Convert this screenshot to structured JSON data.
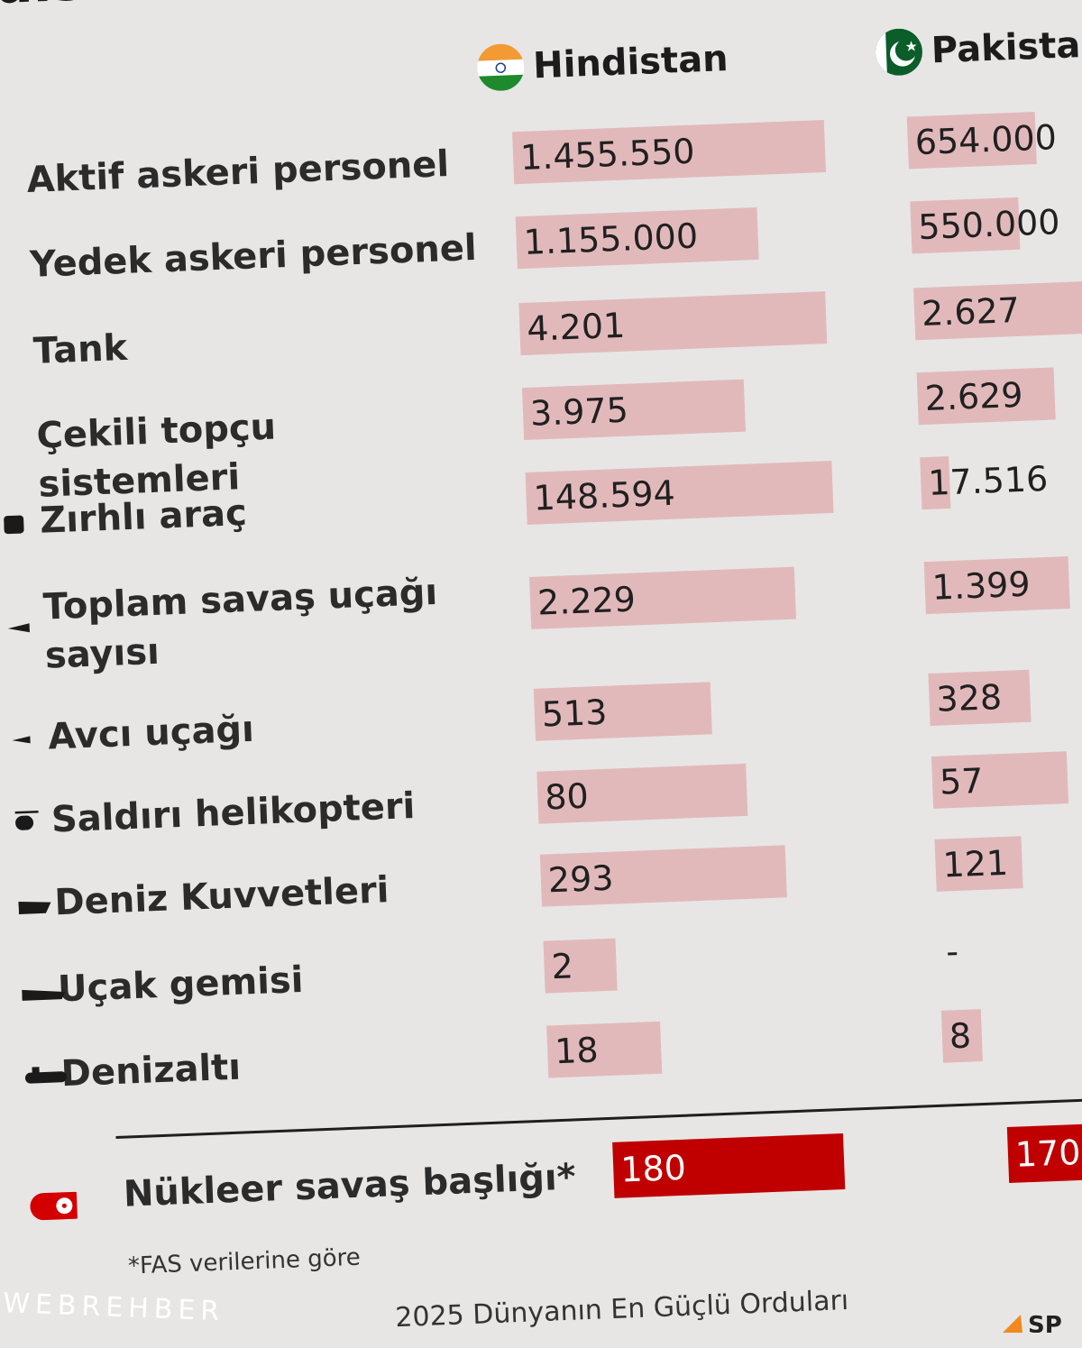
{
  "title": "distan vs Pakistan",
  "columns": {
    "india": "Hindistan",
    "pakistan": "Pakistan"
  },
  "flags": {
    "india": [
      "#f39a35",
      "#ffffff",
      "#1e8a2c",
      "#1b3b8f"
    ],
    "pakistan": [
      "#0b5d2a",
      "#ffffff"
    ]
  },
  "colors": {
    "background": "#e7e6e5",
    "bar": "#e2b9bb",
    "nuclear_bar": "#c00000"
  },
  "chart_data": {
    "type": "bar",
    "orientation": "horizontal",
    "categories": [
      "Aktif askeri personel",
      "Yedek askeri personel",
      "Tank",
      "Çekili topçu sistemleri",
      "Zırhlı araç",
      "Toplam savaş uçağı sayısı",
      "Avcı uçağı",
      "Saldırı helikopteri",
      "Deniz Kuvvetleri",
      "Uçak gemisi",
      "Denizaltı"
    ],
    "series": [
      {
        "name": "Hindistan",
        "values": [
          1455550,
          1155000,
          4201,
          3975,
          148594,
          2229,
          513,
          80,
          293,
          2,
          18
        ],
        "labels": [
          "1.455.550",
          "1.155.000",
          "4.201",
          "3.975",
          "148.594",
          "2.229",
          "513",
          "80",
          "293",
          "2",
          "18"
        ]
      },
      {
        "name": "Pakistan",
        "values": [
          654000,
          550000,
          2627,
          2629,
          17516,
          1399,
          328,
          57,
          121,
          null,
          8
        ],
        "labels": [
          "654.000",
          "550.000",
          "2.627",
          "2.629",
          "17.516",
          "1.399",
          "328",
          "57",
          "121",
          "-",
          "8"
        ]
      }
    ],
    "nuclear": {
      "label": "Nükleer savaş başlığı*",
      "values": [
        180,
        170
      ],
      "labels": [
        "180",
        "170"
      ]
    },
    "bar_color": "#e2b9bb",
    "nuclear_color": "#c00000"
  },
  "footnote": "*FAS verilerine göre",
  "source": "2025 Dünyanın En Güçlü Orduları",
  "watermark": "WEBREHBER"
}
